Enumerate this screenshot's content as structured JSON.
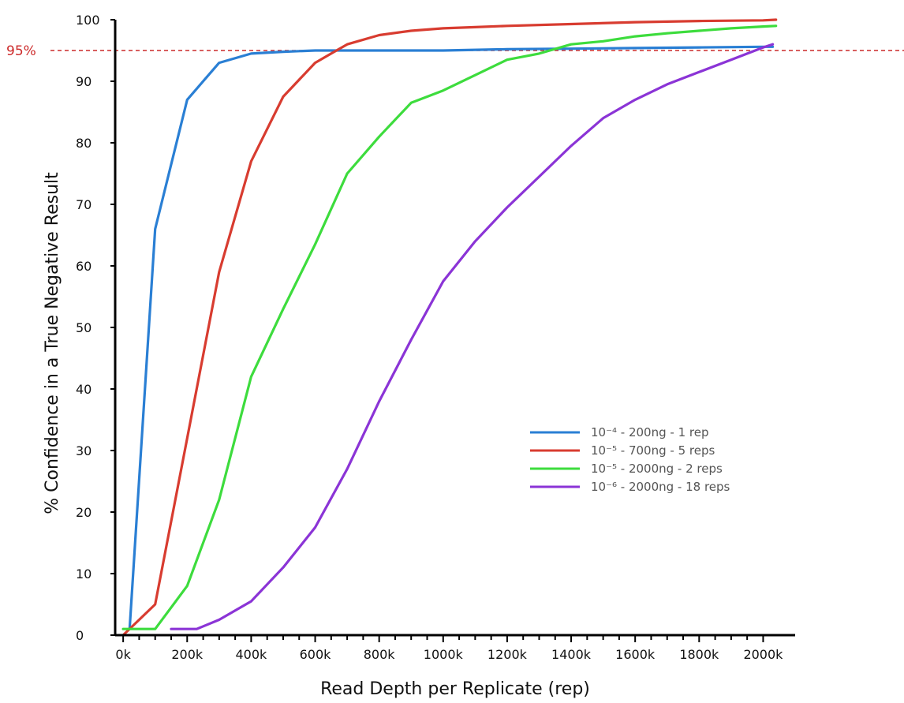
{
  "chart_data": {
    "type": "line",
    "title": "",
    "xlabel": "Read Depth per Replicate (rep)",
    "ylabel": "% Confidence in a True Negative Result",
    "xlim": [
      -25,
      2100
    ],
    "ylim": [
      0,
      100
    ],
    "x_ticks": [
      0,
      200,
      400,
      600,
      800,
      1000,
      1200,
      1400,
      1600,
      1800,
      2000
    ],
    "x_tick_labels": [
      "0k",
      "200k",
      "400k",
      "600k",
      "800k",
      "1000k",
      "1200k",
      "1400k",
      "1600k",
      "1800k",
      "2000k"
    ],
    "y_ticks": [
      0,
      10,
      20,
      30,
      40,
      50,
      60,
      70,
      80,
      90,
      100
    ],
    "y_tick_labels": [
      "0",
      "10",
      "20",
      "30",
      "40",
      "50",
      "60",
      "70",
      "80",
      "90",
      "100"
    ],
    "grid": false,
    "legend_position": "center-right",
    "reference_line": {
      "y": 95,
      "label": "95%",
      "color": "#cc2a2a"
    },
    "series": [
      {
        "name": "10⁻⁴ - 200ng - 1 rep",
        "color": "#2a7fd4",
        "x": [
          20,
          100,
          200,
          300,
          400,
          500,
          600,
          700,
          800,
          1000,
          1200,
          1400,
          1600,
          1800,
          2000,
          2030
        ],
        "y": [
          1,
          66,
          87,
          93,
          94.5,
          94.8,
          95,
          95,
          95,
          95,
          95.2,
          95.3,
          95.4,
          95.5,
          95.6,
          95.6
        ]
      },
      {
        "name": "10⁻⁵ - 700ng - 5 reps",
        "color": "#d83c30",
        "x": [
          0,
          100,
          200,
          300,
          400,
          500,
          600,
          650,
          700,
          800,
          900,
          1000,
          1100,
          1200,
          1400,
          1600,
          1800,
          2000,
          2040
        ],
        "y": [
          0,
          5,
          32,
          59,
          77,
          87.5,
          93,
          94.5,
          96,
          97.5,
          98.2,
          98.6,
          98.8,
          99,
          99.3,
          99.6,
          99.8,
          99.9,
          100
        ]
      },
      {
        "name": "10⁻⁵ - 2000ng - 2 reps",
        "color": "#3ddc3d",
        "x": [
          0,
          100,
          200,
          300,
          400,
          500,
          600,
          700,
          800,
          900,
          1000,
          1100,
          1200,
          1300,
          1400,
          1500,
          1600,
          1700,
          1800,
          1900,
          2000,
          2040
        ],
        "y": [
          1,
          1,
          8,
          22,
          42,
          53,
          63.5,
          75,
          81,
          86.5,
          88.5,
          91,
          93.5,
          94.5,
          96,
          96.5,
          97.3,
          97.8,
          98.2,
          98.6,
          98.9,
          99
        ]
      },
      {
        "name": "10⁻⁶ - 2000ng - 18 reps",
        "color": "#8b34d6",
        "x": [
          150,
          230,
          300,
          400,
          500,
          600,
          700,
          800,
          900,
          1000,
          1100,
          1200,
          1300,
          1400,
          1500,
          1600,
          1700,
          1800,
          1900,
          2000,
          2030
        ],
        "y": [
          1,
          1,
          2.5,
          5.5,
          11,
          17.5,
          27,
          38,
          48,
          57.5,
          64,
          69.5,
          74.5,
          79.5,
          84,
          87,
          89.5,
          91.5,
          93.5,
          95.5,
          96
        ]
      }
    ]
  }
}
